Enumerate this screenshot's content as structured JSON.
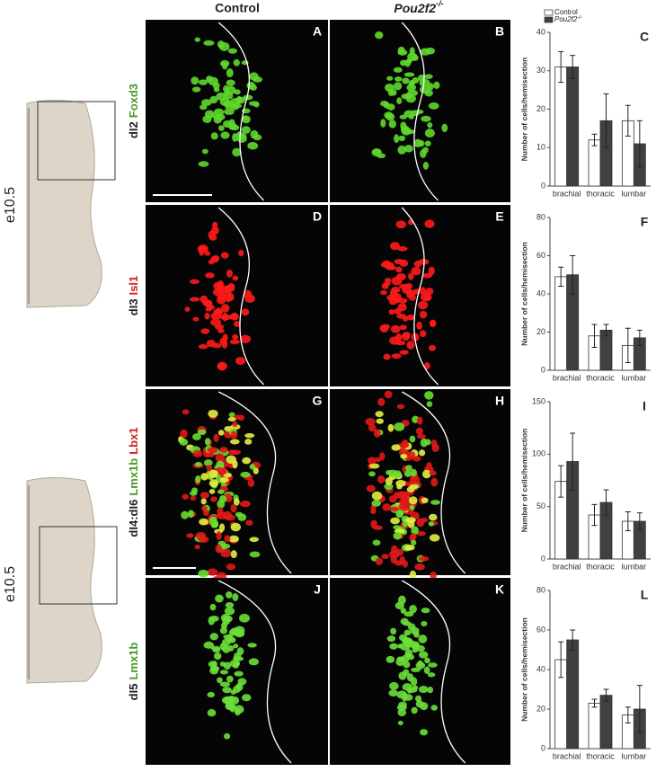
{
  "column_headers": [
    {
      "text": "Control"
    },
    {
      "text": "Pou2f2",
      "superscript": "-/-"
    }
  ],
  "rows": [
    {
      "cell": "dI2",
      "markers": [
        {
          "text": "Foxd3",
          "color": "#4a9a2a"
        }
      ],
      "panels": [
        "A",
        "B"
      ]
    },
    {
      "cell": "dI3",
      "markers": [
        {
          "text": "Isl1",
          "color": "#d42020"
        }
      ],
      "panels": [
        "D",
        "E"
      ]
    },
    {
      "cell": "dI4:dI6",
      "markers": [
        {
          "text": "Lmx1b",
          "color": "#4a9a2a"
        },
        {
          "text": "Lbx1",
          "color": "#d42020"
        }
      ],
      "panels": [
        "G",
        "H"
      ]
    },
    {
      "cell": "dI5",
      "markers": [
        {
          "text": "Lmx1b",
          "color": "#4a9a2a"
        }
      ],
      "panels": [
        "J",
        "K"
      ]
    }
  ],
  "schematics": [
    {
      "stage": "e10.5"
    },
    {
      "stage": "e10.5"
    }
  ],
  "chart_data": [
    {
      "type": "bar",
      "panel_label": "C",
      "y_label": "Number of cells/hemisection",
      "categories": [
        "brachial",
        "thoracic",
        "lumbar"
      ],
      "series": [
        {
          "name": "Control",
          "color": "#ffffff",
          "values": [
            31,
            12,
            17
          ],
          "errors": [
            4,
            1.5,
            4
          ]
        },
        {
          "name": "Pou2f2",
          "name_superscript": "-/-",
          "color": "#404040",
          "values": [
            31,
            17,
            11
          ],
          "errors": [
            3,
            7,
            6
          ]
        }
      ],
      "ylim": [
        0,
        40
      ],
      "yticks": [
        0,
        10,
        20,
        30,
        40
      ],
      "legend": true
    },
    {
      "type": "bar",
      "panel_label": "F",
      "y_label": "Number of cells/hemisection",
      "categories": [
        "brachial",
        "thoracic",
        "lumbar"
      ],
      "series": [
        {
          "name": "Control",
          "color": "#ffffff",
          "values": [
            49,
            18,
            13
          ],
          "errors": [
            5,
            6,
            9
          ]
        },
        {
          "name": "Pou2f2",
          "color": "#404040",
          "values": [
            50,
            21,
            17
          ],
          "errors": [
            10,
            3,
            4
          ]
        }
      ],
      "ylim": [
        0,
        80
      ],
      "yticks": [
        0,
        20,
        40,
        60,
        80
      ],
      "legend": false
    },
    {
      "type": "bar",
      "panel_label": "I",
      "y_label": "Number of cells/hemisection",
      "categories": [
        "brachial",
        "thoracic",
        "lumbar"
      ],
      "series": [
        {
          "name": "Control",
          "color": "#ffffff",
          "values": [
            74,
            42,
            36
          ],
          "errors": [
            15,
            10,
            9
          ]
        },
        {
          "name": "Pou2f2",
          "color": "#404040",
          "values": [
            93,
            54,
            36
          ],
          "errors": [
            27,
            12,
            8
          ]
        }
      ],
      "ylim": [
        0,
        150
      ],
      "yticks": [
        0,
        50,
        100,
        150
      ],
      "legend": false
    },
    {
      "type": "bar",
      "panel_label": "L",
      "y_label": "Number of cells/hemisection",
      "categories": [
        "brachial",
        "thoracic",
        "lumbar"
      ],
      "series": [
        {
          "name": "Control",
          "color": "#ffffff",
          "values": [
            45,
            23,
            17
          ],
          "errors": [
            9,
            2,
            4
          ]
        },
        {
          "name": "Pou2f2",
          "color": "#404040",
          "values": [
            55,
            27,
            20
          ],
          "errors": [
            5,
            3,
            12
          ]
        }
      ],
      "ylim": [
        0,
        80
      ],
      "yticks": [
        0,
        20,
        40,
        60,
        80
      ],
      "legend": false
    }
  ]
}
